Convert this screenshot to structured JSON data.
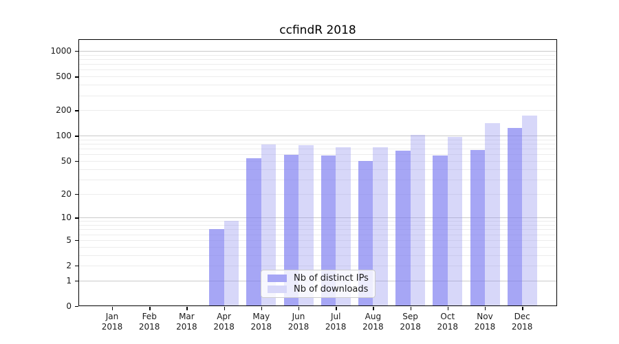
{
  "title": "ccfindR 2018",
  "chart_data": {
    "type": "bar",
    "title": "ccfindR 2018",
    "categories": [
      "Jan 2018",
      "Feb 2018",
      "Mar 2018",
      "Apr 2018",
      "May 2018",
      "Jun 2018",
      "Jul 2018",
      "Aug 2018",
      "Sep 2018",
      "Oct 2018",
      "Nov 2018",
      "Dec 2018"
    ],
    "series": [
      {
        "name": "Nb of distinct IPs",
        "color": "#7878f0",
        "alpha": 0.66,
        "rendered_color": "#a6a6f5",
        "values": [
          0,
          0,
          0,
          7,
          54,
          59,
          58,
          50,
          66,
          58,
          68,
          124
        ]
      },
      {
        "name": "Nb of downloads",
        "color": "#9696f0",
        "alpha": 0.38,
        "rendered_color": "#d7d7f9",
        "values": [
          0,
          0,
          0,
          9,
          78,
          77,
          73,
          73,
          103,
          96,
          142,
          174
        ]
      }
    ],
    "xlabel": "",
    "ylabel": "",
    "y_ticks": [
      0,
      1,
      2,
      5,
      10,
      20,
      50,
      100,
      200,
      500,
      1000
    ],
    "y_scale": "log(1+x)",
    "ylim": [
      0,
      1370
    ],
    "grid": {
      "horizontal": true,
      "vertical": false,
      "minor_color": "#ececec",
      "major_color": "#c9c9c9"
    },
    "legend": {
      "position": "inside-bottom-center",
      "entries": [
        "Nb of distinct IPs",
        "Nb of downloads"
      ]
    }
  }
}
